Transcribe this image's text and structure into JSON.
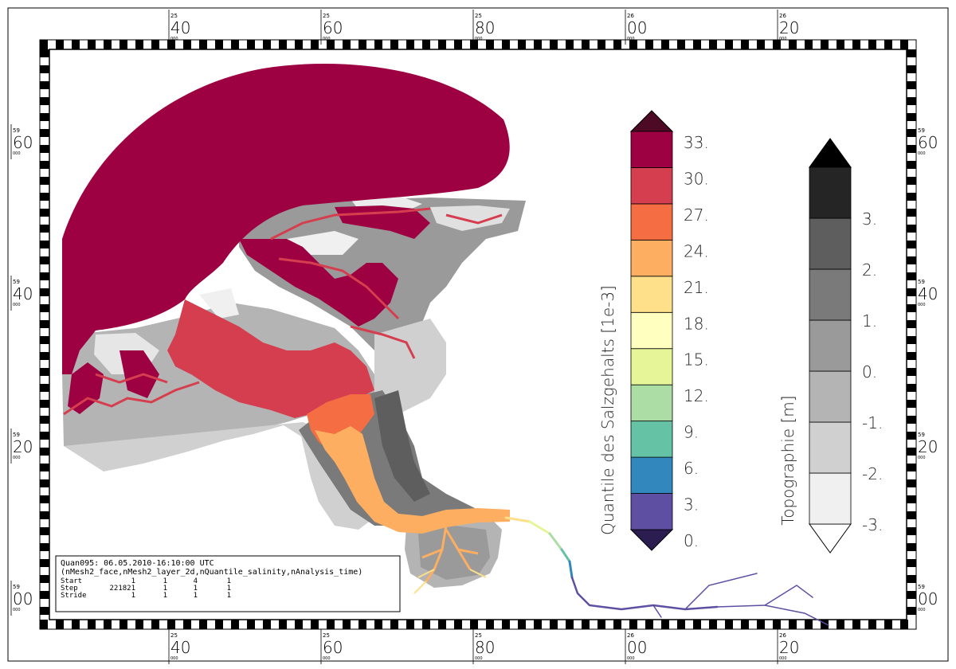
{
  "axes": {
    "top": [
      {
        "deg": "25",
        "min": "40"
      },
      {
        "deg": "25",
        "min": "60"
      },
      {
        "deg": "25",
        "min": "80"
      },
      {
        "deg": "26",
        "min": "00"
      },
      {
        "deg": "26",
        "min": "20"
      }
    ],
    "bottom": [
      {
        "deg": "25",
        "min": "40"
      },
      {
        "deg": "25",
        "min": "60"
      },
      {
        "deg": "25",
        "min": "80"
      },
      {
        "deg": "26",
        "min": "00"
      },
      {
        "deg": "26",
        "min": "20"
      }
    ],
    "left": [
      {
        "deg": "59",
        "min": "60"
      },
      {
        "deg": "59",
        "min": "40"
      },
      {
        "deg": "59",
        "min": "20"
      },
      {
        "deg": "59",
        "min": "00"
      }
    ],
    "right": [
      {
        "deg": "59",
        "min": "60"
      },
      {
        "deg": "59",
        "min": "40"
      },
      {
        "deg": "59",
        "min": "20"
      },
      {
        "deg": "59",
        "min": "00"
      }
    ],
    "sub": "000"
  },
  "colorbar_salinity": {
    "title": "Quantile des Salzgehalts [1e-3]",
    "ticks": [
      "0.",
      "3.",
      "6.",
      "9.",
      "12.",
      "15.",
      "18.",
      "21.",
      "24.",
      "27.",
      "30.",
      "33."
    ],
    "colors": [
      "#5e4fa2",
      "#3288bd",
      "#66c2a5",
      "#abdda4",
      "#e6f598",
      "#ffffbf",
      "#fee08b",
      "#fdae61",
      "#f46d43",
      "#d53e4f",
      "#9e0142"
    ],
    "under_color": "#2b1d50",
    "over_color": "#4d0a25"
  },
  "colorbar_topo": {
    "title": "Topographie [m]",
    "ticks": [
      "-3.",
      "-2.",
      "-1.",
      "0.",
      "1.",
      "2.",
      "3."
    ],
    "colors": [
      "#f0f0f0",
      "#d0d0d0",
      "#b4b4b4",
      "#9a9a9a",
      "#7a7a7a",
      "#5e5e5e"
    ],
    "top_band_color": "#252525",
    "under_color": "#ffffff",
    "over_color": "#000000"
  },
  "info_box": {
    "line1": "Quan095: 06.05.2010-16:10:00 UTC",
    "line2": "(nMesh2_face,nMesh2_layer_2d,nQuantile_salinity,nAnalysis_time)",
    "rows": [
      {
        "label": "Start",
        "vals": [
          "1",
          "1",
          "4",
          "1"
        ]
      },
      {
        "label": "Step",
        "vals": [
          "221821",
          "1",
          "1",
          "1"
        ]
      },
      {
        "label": "Stride",
        "vals": [
          "1",
          "1",
          "1",
          "1"
        ]
      }
    ]
  }
}
